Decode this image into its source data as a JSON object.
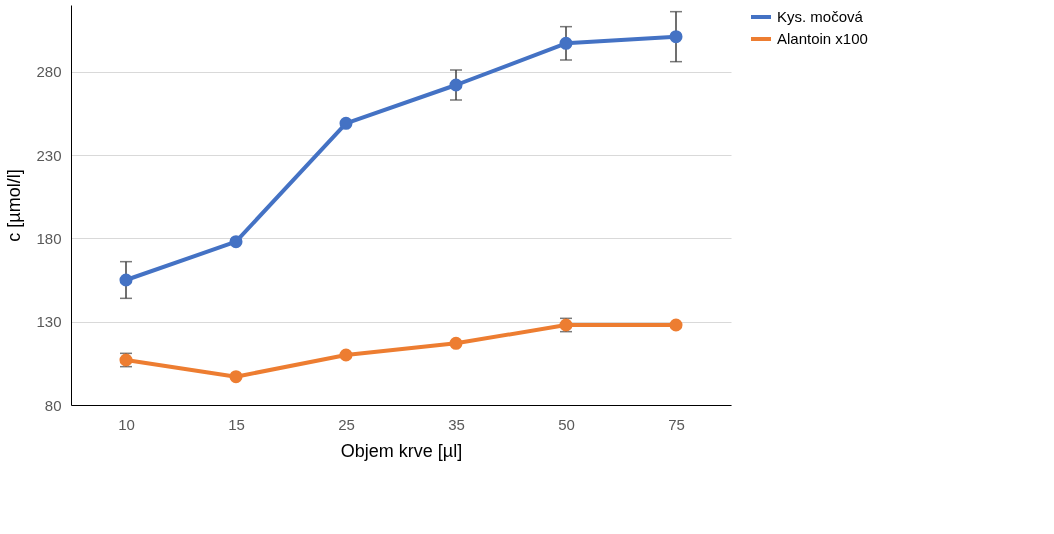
{
  "chart_data": {
    "type": "line",
    "xlabel": "Objem krve [µl]",
    "ylabel": "c [µmol/l]",
    "categories": [
      "10",
      "15",
      "25",
      "35",
      "50",
      "75"
    ],
    "series": [
      {
        "name": "Kys. močová",
        "color": "#4472c4",
        "values": [
          155,
          178,
          249,
          272,
          297,
          301
        ],
        "errors": [
          11,
          null,
          null,
          9,
          10,
          15
        ]
      },
      {
        "name": "Alantoin x100",
        "color": "#ed7d31",
        "values": [
          107,
          97,
          110,
          117,
          128,
          128
        ],
        "errors": [
          4,
          null,
          null,
          null,
          4,
          null
        ]
      }
    ],
    "ylim": [
      80,
      320
    ],
    "yticks": [
      80,
      130,
      180,
      230,
      280
    ],
    "grid": "y",
    "legend": "right",
    "marker": "circle",
    "line_style": "solid"
  }
}
